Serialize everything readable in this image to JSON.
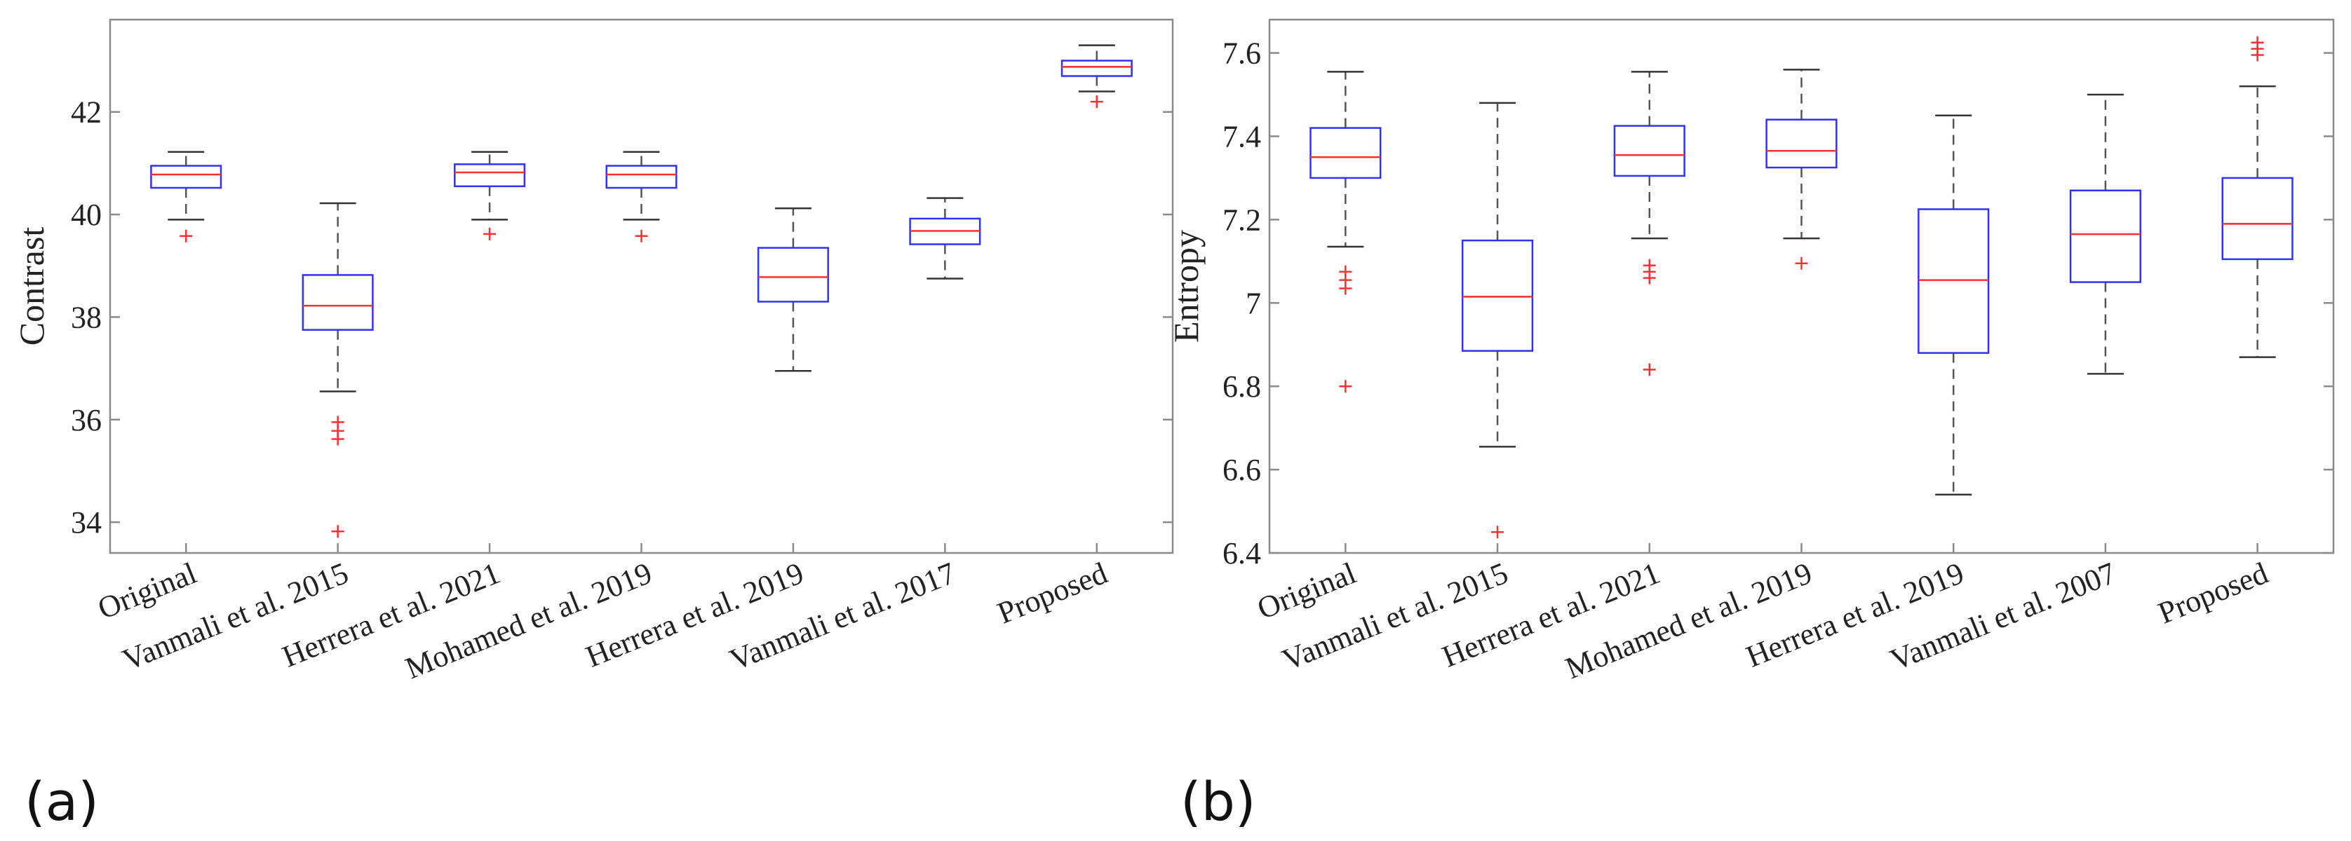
{
  "chart_data": [
    {
      "type": "box",
      "panel_label": "(a)",
      "ylabel": "Contrast",
      "xlabel": "",
      "ylim": [
        33.4,
        43.8
      ],
      "yticks": [
        34,
        36,
        38,
        40,
        42
      ],
      "grid": false,
      "categories": [
        "Original",
        "Vanmali et al. 2015",
        "Herrera et al. 2021",
        "Mohamed et al. 2019",
        "Herrera et al. 2019",
        "Vanmali et al. 2017",
        "Proposed"
      ],
      "boxes": [
        {
          "whisker_low": 39.9,
          "q1": 40.52,
          "median": 40.78,
          "q3": 40.95,
          "whisker_high": 41.22,
          "outliers": [
            39.58
          ]
        },
        {
          "whisker_low": 36.55,
          "q1": 37.75,
          "median": 38.22,
          "q3": 38.82,
          "whisker_high": 40.22,
          "outliers": [
            35.95,
            35.78,
            35.62,
            33.82
          ]
        },
        {
          "whisker_low": 39.9,
          "q1": 40.55,
          "median": 40.82,
          "q3": 40.98,
          "whisker_high": 41.22,
          "outliers": [
            39.62
          ]
        },
        {
          "whisker_low": 39.9,
          "q1": 40.52,
          "median": 40.78,
          "q3": 40.95,
          "whisker_high": 41.22,
          "outliers": [
            39.58
          ]
        },
        {
          "whisker_low": 36.95,
          "q1": 38.3,
          "median": 38.78,
          "q3": 39.35,
          "whisker_high": 40.12,
          "outliers": []
        },
        {
          "whisker_low": 38.75,
          "q1": 39.42,
          "median": 39.68,
          "q3": 39.92,
          "whisker_high": 40.32,
          "outliers": []
        },
        {
          "whisker_low": 42.4,
          "q1": 42.7,
          "median": 42.88,
          "q3": 43.0,
          "whisker_high": 43.3,
          "outliers": [
            42.2
          ]
        }
      ]
    },
    {
      "type": "box",
      "panel_label": "(b)",
      "ylabel": "Entropy",
      "xlabel": "",
      "ylim": [
        6.4,
        7.68
      ],
      "yticks": [
        "6.4",
        "6.6",
        "6.8",
        "7",
        "7.2",
        "7.4",
        "7.6"
      ],
      "grid": false,
      "categories": [
        "Original",
        "Vanmali et al. 2015",
        "Herrera et al. 2021",
        "Mohamed et al. 2019",
        "Herrera et al. 2019",
        "Vanmali et al. 2007",
        "Proposed"
      ],
      "boxes": [
        {
          "whisker_low": 7.135,
          "q1": 7.3,
          "median": 7.35,
          "q3": 7.42,
          "whisker_high": 7.555,
          "outliers": [
            7.075,
            7.055,
            7.035,
            6.8
          ]
        },
        {
          "whisker_low": 6.655,
          "q1": 6.885,
          "median": 7.015,
          "q3": 7.15,
          "whisker_high": 7.48,
          "outliers": [
            6.45
          ]
        },
        {
          "whisker_low": 7.155,
          "q1": 7.305,
          "median": 7.355,
          "q3": 7.425,
          "whisker_high": 7.555,
          "outliers": [
            7.09,
            7.075,
            7.06,
            6.84
          ]
        },
        {
          "whisker_low": 7.155,
          "q1": 7.325,
          "median": 7.365,
          "q3": 7.44,
          "whisker_high": 7.56,
          "outliers": [
            7.095
          ]
        },
        {
          "whisker_low": 6.54,
          "q1": 6.88,
          "median": 7.055,
          "q3": 7.225,
          "whisker_high": 7.45,
          "outliers": []
        },
        {
          "whisker_low": 6.83,
          "q1": 7.05,
          "median": 7.165,
          "q3": 7.27,
          "whisker_high": 7.5,
          "outliers": []
        },
        {
          "whisker_low": 6.87,
          "q1": 7.105,
          "median": 7.19,
          "q3": 7.3,
          "whisker_high": 7.52,
          "outliers": [
            7.625,
            7.61,
            7.595
          ]
        }
      ]
    }
  ]
}
